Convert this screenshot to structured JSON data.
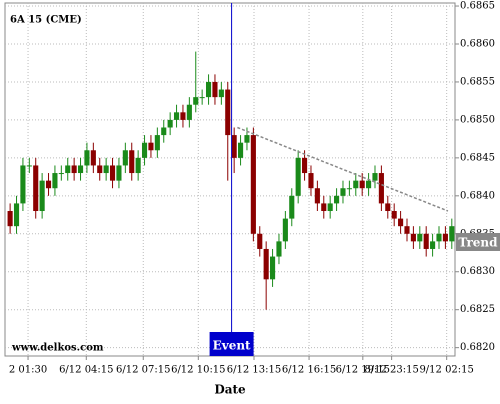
{
  "chart_data": {
    "type": "candlestick",
    "title": "6A 15 (CME)",
    "watermark": "www.delkos.com",
    "x_label": "Date",
    "up_color": "#1a8a1a",
    "down_color": "#8b0000",
    "grid": true,
    "open": [
      0.6838,
      0.6836,
      0.6839,
      0.6844,
      0.6844,
      0.6838,
      0.6842,
      0.6841,
      0.6843,
      0.6843,
      0.6844,
      0.6843,
      0.6844,
      0.6846,
      0.6844,
      0.6843,
      0.6844,
      0.6842,
      0.6844,
      0.6846,
      0.6843,
      0.6845,
      0.6847,
      0.6846,
      0.6848,
      0.6849,
      0.685,
      0.6851,
      0.685,
      0.6852,
      0.6853,
      0.6853,
      0.6855,
      0.6853,
      0.6854,
      0.6848,
      0.6845,
      0.6847,
      0.6848,
      0.6835,
      0.6833,
      0.6829,
      0.6832,
      0.6834,
      0.6837,
      0.684,
      0.6845,
      0.6843,
      0.6841,
      0.6839,
      0.6838,
      0.6839,
      0.684,
      0.6841,
      0.6841,
      0.6842,
      0.6841,
      0.6842,
      0.6843,
      0.6839,
      0.6838,
      0.6837,
      0.6836,
      0.6835,
      0.6834,
      0.6835,
      0.6833,
      0.6834,
      0.6835,
      0.6834
    ],
    "high": [
      0.6839,
      0.684,
      0.6845,
      0.6845,
      0.6845,
      0.6843,
      0.6843,
      0.6844,
      0.6844,
      0.6845,
      0.6845,
      0.6845,
      0.6847,
      0.6847,
      0.6845,
      0.6845,
      0.6845,
      0.6845,
      0.6847,
      0.6847,
      0.6846,
      0.6848,
      0.6848,
      0.6849,
      0.685,
      0.6851,
      0.6852,
      0.6852,
      0.6853,
      0.6859,
      0.6854,
      0.6856,
      0.6856,
      0.6855,
      0.6855,
      0.6849,
      0.6848,
      0.6849,
      0.6849,
      0.6836,
      0.6834,
      0.6833,
      0.6835,
      0.6838,
      0.6841,
      0.6846,
      0.6846,
      0.6844,
      0.6842,
      0.684,
      0.684,
      0.6841,
      0.6842,
      0.6842,
      0.6843,
      0.6843,
      0.6843,
      0.6844,
      0.6844,
      0.684,
      0.6839,
      0.6838,
      0.6837,
      0.6836,
      0.6836,
      0.6836,
      0.6835,
      0.6836,
      0.6836,
      0.6837
    ],
    "low": [
      0.6835,
      0.6835,
      0.6838,
      0.6843,
      0.6837,
      0.6837,
      0.684,
      0.684,
      0.6842,
      0.6842,
      0.6842,
      0.6842,
      0.6843,
      0.6843,
      0.6842,
      0.6842,
      0.6841,
      0.6841,
      0.6843,
      0.6842,
      0.6842,
      0.6844,
      0.6845,
      0.6845,
      0.6847,
      0.6848,
      0.6849,
      0.6849,
      0.6849,
      0.6851,
      0.6852,
      0.6852,
      0.6852,
      0.6852,
      0.6842,
      0.6843,
      0.6844,
      0.6846,
      0.6834,
      0.6832,
      0.6825,
      0.6828,
      0.6831,
      0.6833,
      0.6836,
      0.6839,
      0.6842,
      0.684,
      0.6838,
      0.6837,
      0.6837,
      0.6838,
      0.6839,
      0.684,
      0.684,
      0.684,
      0.684,
      0.6841,
      0.6838,
      0.6837,
      0.6836,
      0.6835,
      0.6834,
      0.6833,
      0.6833,
      0.6832,
      0.6832,
      0.6833,
      0.6833,
      0.6833
    ],
    "close": [
      0.6836,
      0.6839,
      0.6844,
      0.6844,
      0.6838,
      0.6842,
      0.6841,
      0.6843,
      0.6843,
      0.6844,
      0.6843,
      0.6844,
      0.6846,
      0.6844,
      0.6843,
      0.6844,
      0.6842,
      0.6844,
      0.6846,
      0.6843,
      0.6845,
      0.6847,
      0.6846,
      0.6848,
      0.6849,
      0.685,
      0.6851,
      0.685,
      0.6852,
      0.6853,
      0.6853,
      0.6855,
      0.6853,
      0.6854,
      0.6848,
      0.6845,
      0.6847,
      0.6848,
      0.6835,
      0.6833,
      0.6829,
      0.6832,
      0.6834,
      0.6837,
      0.684,
      0.6845,
      0.6843,
      0.6841,
      0.6839,
      0.6838,
      0.6839,
      0.684,
      0.6841,
      0.6841,
      0.6842,
      0.6841,
      0.6842,
      0.6843,
      0.6839,
      0.6838,
      0.6837,
      0.6836,
      0.6835,
      0.6834,
      0.6835,
      0.6833,
      0.6834,
      0.6835,
      0.6834,
      0.6836
    ],
    "xlim": [
      -0.8,
      69.5
    ],
    "xticks": [
      {
        "value": 2.8,
        "label": "2 01:30"
      },
      {
        "value": 11.9,
        "label": "6/12 04:15"
      },
      {
        "value": 20.8,
        "label": "6/12 07:15"
      },
      {
        "value": 29.4,
        "label": "6/12 10:15"
      },
      {
        "value": 38.1,
        "label": "6/12 13:15"
      },
      {
        "value": 46.7,
        "label": "6/12 16:15"
      },
      {
        "value": 55.1,
        "label": "6/12 19:15"
      },
      {
        "value": 59.6,
        "label": "8/12 23:15"
      },
      {
        "value": 68.2,
        "label": "9/12 02:15"
      }
    ],
    "ylim": [
      0.68189,
      0.68654
    ],
    "yticks": [
      {
        "value": 0.682,
        "label": "0.6820"
      },
      0.6825,
      {
        "value": 0.683,
        "label": "0.6830"
      },
      0.6835,
      {
        "value": 0.684,
        "label": "0.6840"
      },
      0.6845,
      {
        "value": 0.685,
        "label": "0.6850"
      },
      0.6855,
      {
        "value": 0.686,
        "label": "0.6860"
      },
      0.6865
    ],
    "event": {
      "label": "Event",
      "x": 34.6,
      "color": "#0000cc"
    },
    "trend": {
      "label": "Trend",
      "x": [
        35.5,
        68.4
      ],
      "y": [
        0.6849,
        0.6838
      ],
      "color": "#888888"
    }
  }
}
